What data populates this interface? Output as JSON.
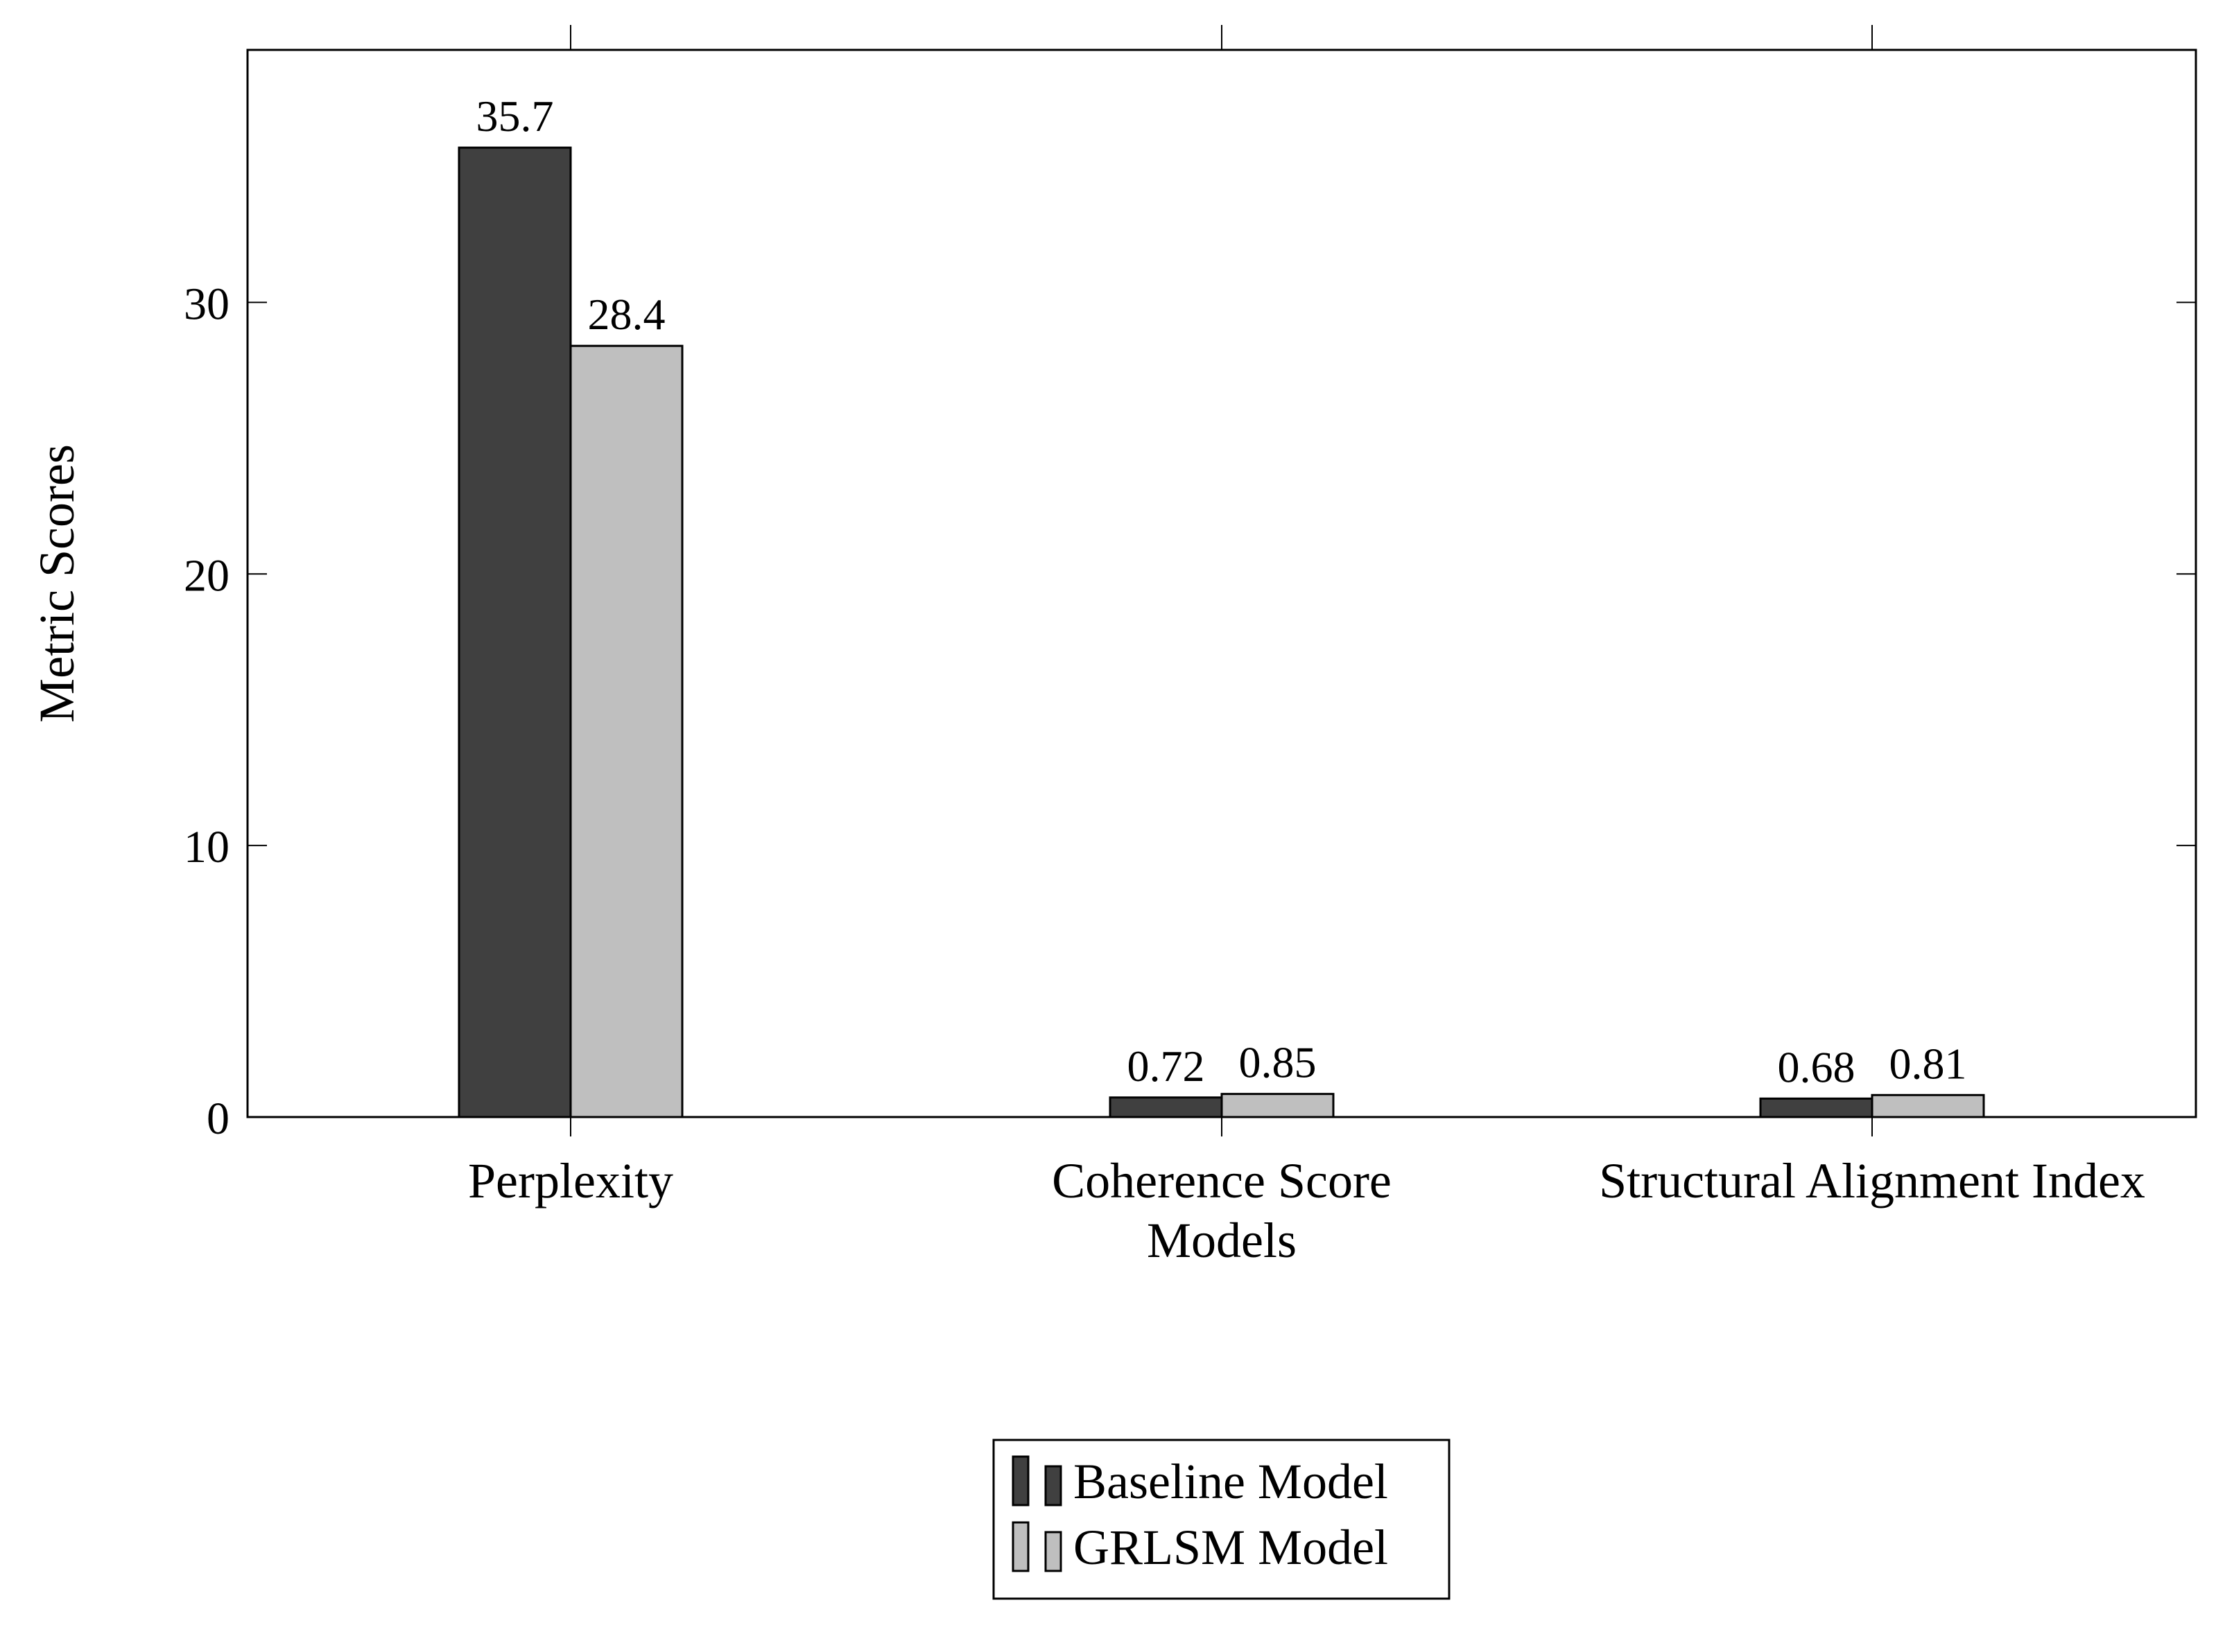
{
  "chart_data": {
    "type": "bar",
    "title": "",
    "xlabel": "Models",
    "ylabel": "Metric Scores",
    "categories": [
      "Perplexity",
      "Coherence Score",
      "Structural Alignment Index"
    ],
    "series": [
      {
        "name": "Baseline Model",
        "values": [
          35.7,
          0.72,
          0.68
        ],
        "labels": [
          "35.7",
          "0.72",
          "0.68"
        ],
        "color": "#404040"
      },
      {
        "name": "GRLSM Model",
        "values": [
          28.4,
          0.85,
          0.81
        ],
        "labels": [
          "28.4",
          "0.85",
          "0.81"
        ],
        "color": "#bfbfbf"
      }
    ],
    "ylim": [
      0,
      39.3
    ],
    "yticks": [
      0,
      10,
      20,
      30
    ],
    "ytick_labels": [
      "0",
      "10",
      "20",
      "30"
    ],
    "grid": false,
    "legend_position": "bottom-center"
  }
}
